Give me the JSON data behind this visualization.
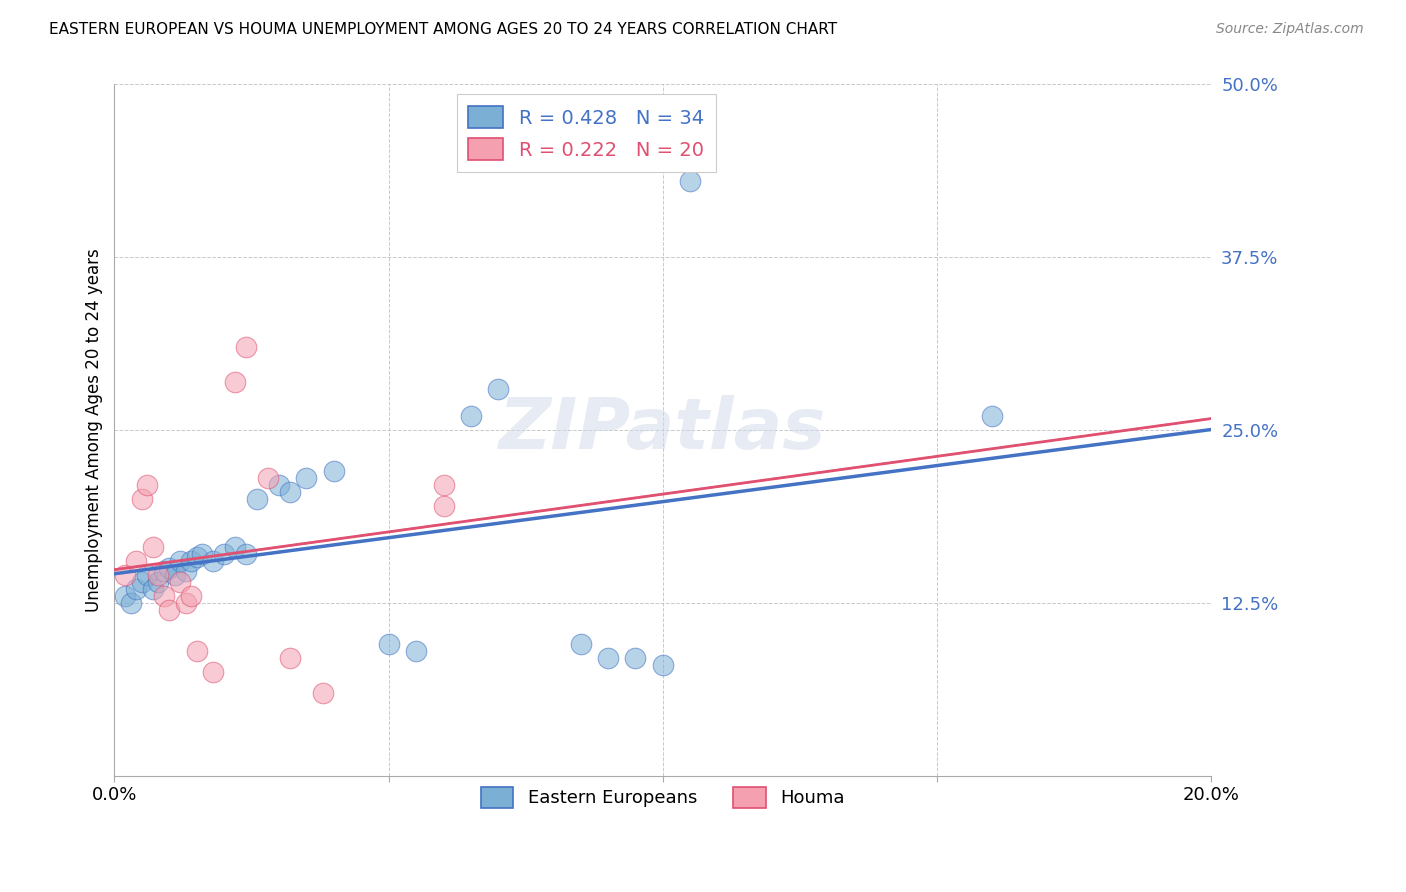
{
  "title": "EASTERN EUROPEAN VS HOUMA UNEMPLOYMENT AMONG AGES 20 TO 24 YEARS CORRELATION CHART",
  "source": "Source: ZipAtlas.com",
  "ylabel": "Unemployment Among Ages 20 to 24 years",
  "xlim": [
    0,
    0.2
  ],
  "ylim": [
    0,
    0.5
  ],
  "xticks": [
    0.0,
    0.05,
    0.1,
    0.15,
    0.2
  ],
  "yticks": [
    0.0,
    0.125,
    0.25,
    0.375,
    0.5
  ],
  "xticklabels": [
    "0.0%",
    "",
    "",
    "",
    "20.0%"
  ],
  "yticklabels": [
    "",
    "12.5%",
    "25.0%",
    "37.5%",
    "50.0%"
  ],
  "blue_R": 0.428,
  "blue_N": 34,
  "pink_R": 0.222,
  "pink_N": 20,
  "blue_color": "#7BAFD4",
  "pink_color": "#F4A0B0",
  "blue_line_color": "#4472C4",
  "pink_line_color": "#E05070",
  "legend_label1": "Eastern Europeans",
  "legend_label2": "Houma",
  "watermark": "ZIPatlas",
  "blue_x": [
    0.002,
    0.003,
    0.004,
    0.005,
    0.006,
    0.007,
    0.008,
    0.009,
    0.01,
    0.011,
    0.012,
    0.013,
    0.014,
    0.015,
    0.016,
    0.018,
    0.02,
    0.022,
    0.024,
    0.026,
    0.03,
    0.032,
    0.035,
    0.04,
    0.05,
    0.055,
    0.065,
    0.07,
    0.085,
    0.09,
    0.095,
    0.1,
    0.105,
    0.16
  ],
  "blue_y": [
    0.13,
    0.125,
    0.135,
    0.14,
    0.145,
    0.135,
    0.14,
    0.148,
    0.15,
    0.145,
    0.155,
    0.148,
    0.155,
    0.158,
    0.16,
    0.155,
    0.16,
    0.165,
    0.16,
    0.2,
    0.21,
    0.205,
    0.215,
    0.22,
    0.095,
    0.09,
    0.26,
    0.28,
    0.095,
    0.085,
    0.085,
    0.08,
    0.43,
    0.26
  ],
  "pink_x": [
    0.002,
    0.004,
    0.005,
    0.006,
    0.007,
    0.008,
    0.009,
    0.01,
    0.012,
    0.013,
    0.014,
    0.015,
    0.018,
    0.022,
    0.024,
    0.028,
    0.032,
    0.038,
    0.06,
    0.06
  ],
  "pink_y": [
    0.145,
    0.155,
    0.2,
    0.21,
    0.165,
    0.145,
    0.13,
    0.12,
    0.14,
    0.125,
    0.13,
    0.09,
    0.075,
    0.285,
    0.31,
    0.215,
    0.085,
    0.06,
    0.195,
    0.21
  ]
}
